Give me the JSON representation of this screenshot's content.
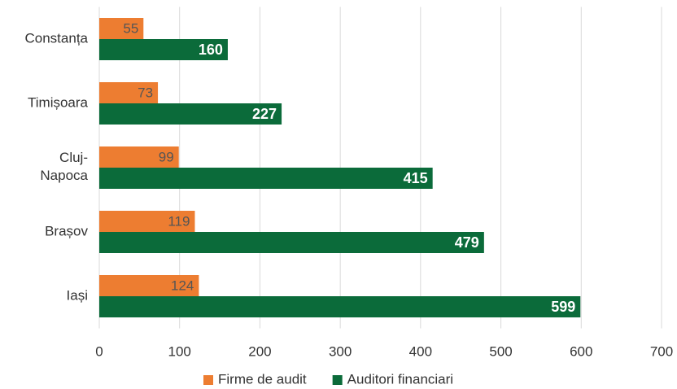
{
  "chart_data": {
    "type": "hbar",
    "categories": [
      "Constanța",
      "Timișoara",
      "Cluj-Napoca",
      "Brașov",
      "Iași"
    ],
    "series": [
      {
        "name": "Firme de audit",
        "color": "#ed7d31",
        "values": [
          55,
          73,
          99,
          119,
          124
        ]
      },
      {
        "name": "Auditori financiari",
        "color": "#0b6b3a",
        "values": [
          160,
          227,
          415,
          479,
          599
        ]
      }
    ],
    "xlim": [
      0,
      700
    ],
    "xticks": [
      0,
      100,
      200,
      300,
      400,
      500,
      600,
      700
    ],
    "grid": true,
    "legend": "bottom"
  }
}
